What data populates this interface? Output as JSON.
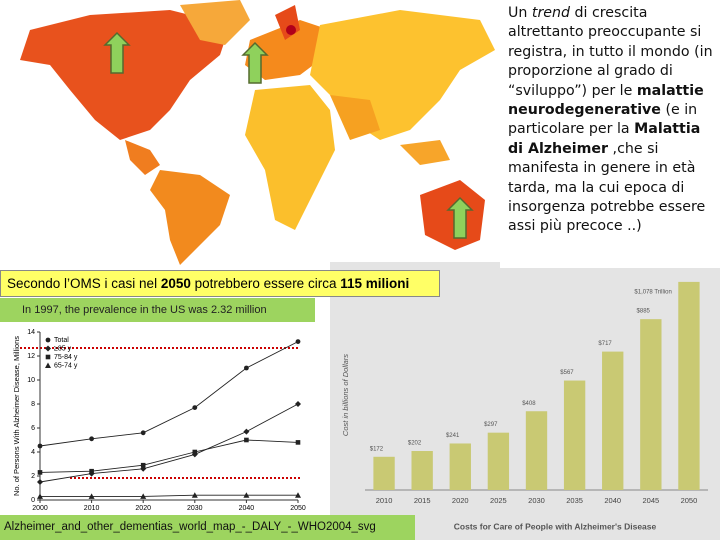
{
  "text_box": [
    {
      "text": "Un ",
      "style": "normal"
    },
    {
      "text": "trend",
      "style": "italic"
    },
    {
      "text": " di crescita altrettanto  preoccupante si registra, in tutto il mondo (in proporzione al grado di “sviluppo”) per le ",
      "style": "normal"
    },
    {
      "text": "malattie neurodegenerative",
      "style": "bold"
    },
    {
      "text": " (e in particolare per la ",
      "style": "normal"
    },
    {
      "text": "Malattia di Alzheimer",
      "style": "bold"
    },
    {
      "text": " ,che si manifesta in genere in età tarda, ma la cui epoca di insorgenza potrebbe essere assi più precoce ..)",
      "style": "normal"
    }
  ],
  "who_banner": [
    {
      "text": "Secondo l’OMS i casi nel ",
      "style": "normal"
    },
    {
      "text": "2050",
      "style": "bold"
    },
    {
      "text": " potrebbero essere circa ",
      "style": "normal"
    },
    {
      "text": "115 milioni",
      "style": "bold"
    }
  ],
  "us_banner": "In 1997, the prevalence in the US was 2.32 million",
  "map_caption": "Alzheimer_and_other_dementias_world_map_-_DALY_-_WHO2004_svg",
  "chart_data": [
    {
      "type": "line",
      "y_label": "No. of Persons With Alzheimer Disease, Millions",
      "x": [
        2000,
        2010,
        2020,
        2030,
        2040,
        2050
      ],
      "xlim": [
        2000,
        2050
      ],
      "xticks": [
        2000,
        2010,
        2020,
        2030,
        2040,
        2050
      ],
      "ylim": [
        0,
        14
      ],
      "yticks": [
        0,
        2,
        4,
        6,
        8,
        10,
        12,
        14
      ],
      "legend": "upper left",
      "series": [
        {
          "name": "Total",
          "color": "#222222",
          "marker": "circle",
          "values": [
            4.5,
            5.1,
            5.6,
            7.7,
            11.0,
            13.2
          ]
        },
        {
          "name": "≥85 y",
          "color": "#222222",
          "marker": "diamond",
          "values": [
            1.5,
            2.2,
            2.6,
            3.8,
            5.7,
            8.0
          ]
        },
        {
          "name": "75-84 y",
          "color": "#222222",
          "marker": "square",
          "values": [
            2.3,
            2.4,
            2.9,
            4.0,
            5.0,
            4.8
          ]
        },
        {
          "name": "65-74 y",
          "color": "#222222",
          "marker": "triangle",
          "values": [
            0.3,
            0.3,
            0.3,
            0.4,
            0.4,
            0.4
          ]
        }
      ]
    },
    {
      "type": "bar",
      "title": "Costs for Care of People with Alzheimer's Disease",
      "y_label": "Cost in billions of Dollars",
      "categories": [
        "2010",
        "2015",
        "2020",
        "2025",
        "2030",
        "2035",
        "2040",
        "2045",
        "2050"
      ],
      "values": [
        172,
        202,
        241,
        297,
        408,
        567,
        717,
        885,
        1078
      ],
      "value_labels": [
        "$172",
        "$202",
        "$241",
        "$297",
        "$408",
        "$567",
        "$717",
        "$885",
        "$1,078 Trillion"
      ],
      "color": "#c9c973",
      "ylim": [
        0,
        1150
      ]
    }
  ]
}
